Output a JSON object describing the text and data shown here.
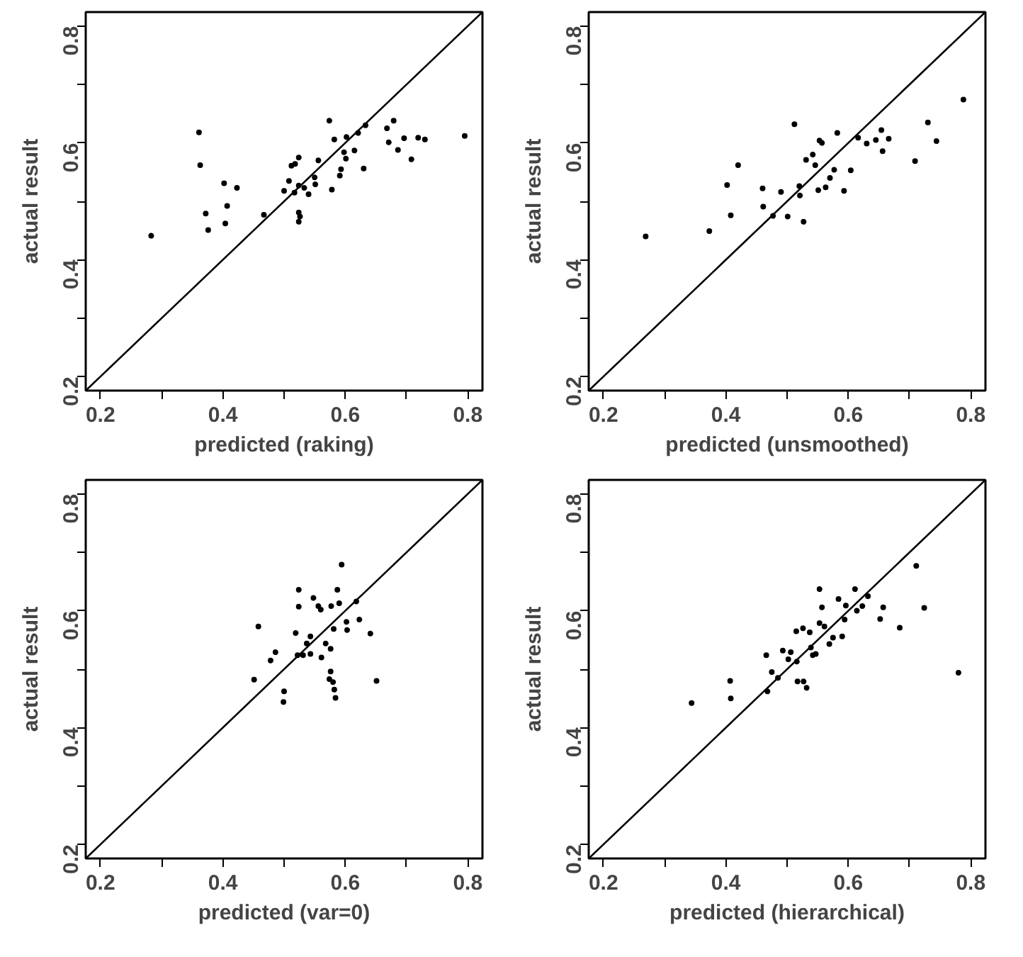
{
  "chart_data": [
    {
      "type": "scatter",
      "xlabel": "predicted (raking)",
      "ylabel": "actual result",
      "xlim": [
        0.176,
        0.824
      ],
      "ylim": [
        0.176,
        0.824
      ],
      "xticks": [
        0.2,
        {
          "value": 0.3,
          "label": null
        },
        0.4,
        {
          "value": 0.5,
          "label": null
        },
        0.6,
        {
          "value": 0.7,
          "label": null
        },
        0.8
      ],
      "yticks": [
        0.2,
        {
          "value": 0.3,
          "label": null
        },
        0.4,
        {
          "value": 0.5,
          "label": null
        },
        0.6,
        {
          "value": 0.7,
          "label": null
        },
        0.8
      ],
      "grid": false,
      "series": [
        {
          "marker": "circle",
          "color": "#000000",
          "x": [
            0.283,
            0.361,
            0.363,
            0.372,
            0.376,
            0.402,
            0.423,
            0.407,
            0.404,
            0.467,
            0.5,
            0.508,
            0.512,
            0.518,
            0.524,
            0.517,
            0.524,
            0.533,
            0.54,
            0.55,
            0.551,
            0.524,
            0.526,
            0.524,
            0.556,
            0.574,
            0.582,
            0.578,
            0.591,
            0.593,
            0.598,
            0.601,
            0.602,
            0.615,
            0.621,
            0.63,
            0.633,
            0.668,
            0.679,
            0.671,
            0.686,
            0.696,
            0.708,
            0.719,
            0.73,
            0.795
          ],
          "values": [
            0.441,
            0.618,
            0.562,
            0.479,
            0.451,
            0.531,
            0.523,
            0.492,
            0.462,
            0.477,
            0.518,
            0.535,
            0.561,
            0.564,
            0.575,
            0.515,
            0.527,
            0.523,
            0.512,
            0.541,
            0.529,
            0.481,
            0.474,
            0.465,
            0.57,
            0.638,
            0.606,
            0.52,
            0.544,
            0.555,
            0.584,
            0.573,
            0.61,
            0.587,
            0.617,
            0.556,
            0.63,
            0.625,
            0.638,
            0.601,
            0.588,
            0.608,
            0.572,
            0.609,
            0.606,
            0.612
          ]
        },
        {
          "type": "line",
          "color": "#000000",
          "x": [
            0.176,
            0.824
          ],
          "values": [
            0.176,
            0.824
          ]
        }
      ]
    },
    {
      "type": "scatter",
      "xlabel": "predicted (unsmoothed)",
      "ylabel": "actual result",
      "xlim": [
        0.176,
        0.824
      ],
      "ylim": [
        0.176,
        0.824
      ],
      "xticks": [
        0.2,
        {
          "value": 0.3,
          "label": null
        },
        0.4,
        {
          "value": 0.5,
          "label": null
        },
        0.6,
        {
          "value": 0.7,
          "label": null
        },
        0.8
      ],
      "yticks": [
        0.2,
        {
          "value": 0.3,
          "label": null
        },
        0.4,
        {
          "value": 0.5,
          "label": null
        },
        0.6,
        {
          "value": 0.7,
          "label": null
        },
        0.8
      ],
      "grid": false,
      "series": [
        {
          "marker": "circle",
          "color": "#000000",
          "x": [
            0.269,
            0.373,
            0.408,
            0.402,
            0.42,
            0.46,
            0.461,
            0.477,
            0.49,
            0.501,
            0.512,
            0.52,
            0.521,
            0.527,
            0.531,
            0.542,
            0.546,
            0.551,
            0.553,
            0.557,
            0.563,
            0.57,
            0.577,
            0.582,
            0.593,
            0.604,
            0.616,
            0.63,
            0.645,
            0.654,
            0.656,
            0.666,
            0.709,
            0.73,
            0.744,
            0.788
          ],
          "values": [
            0.44,
            0.449,
            0.476,
            0.528,
            0.562,
            0.522,
            0.491,
            0.475,
            0.516,
            0.474,
            0.632,
            0.526,
            0.51,
            0.465,
            0.571,
            0.58,
            0.562,
            0.519,
            0.604,
            0.6,
            0.524,
            0.54,
            0.554,
            0.617,
            0.518,
            0.553,
            0.609,
            0.599,
            0.605,
            0.622,
            0.586,
            0.607,
            0.569,
            0.635,
            0.603,
            0.674
          ]
        },
        {
          "type": "line",
          "color": "#000000",
          "x": [
            0.176,
            0.824
          ],
          "values": [
            0.176,
            0.824
          ]
        }
      ]
    },
    {
      "type": "scatter",
      "xlabel": "predicted (var=0)",
      "ylabel": "actual result",
      "xlim": [
        0.176,
        0.824
      ],
      "ylim": [
        0.176,
        0.824
      ],
      "xticks": [
        0.2,
        {
          "value": 0.3,
          "label": null
        },
        0.4,
        {
          "value": 0.5,
          "label": null
        },
        0.6,
        {
          "value": 0.7,
          "label": null
        },
        0.8
      ],
      "yticks": [
        0.2,
        {
          "value": 0.3,
          "label": null
        },
        0.4,
        {
          "value": 0.5,
          "label": null
        },
        0.6,
        {
          "value": 0.7,
          "label": null
        },
        0.8
      ],
      "grid": false,
      "series": [
        {
          "marker": "circle",
          "color": "#000000",
          "x": [
            0.451,
            0.458,
            0.478,
            0.486,
            0.5,
            0.499,
            0.519,
            0.524,
            0.524,
            0.522,
            0.531,
            0.537,
            0.543,
            0.543,
            0.548,
            0.556,
            0.56,
            0.561,
            0.568,
            0.576,
            0.577,
            0.576,
            0.574,
            0.58,
            0.582,
            0.584,
            0.581,
            0.587,
            0.59,
            0.594,
            0.602,
            0.603,
            0.618,
            0.623,
            0.641,
            0.651
          ],
          "values": [
            0.482,
            0.573,
            0.515,
            0.529,
            0.462,
            0.444,
            0.562,
            0.636,
            0.607,
            0.524,
            0.524,
            0.544,
            0.556,
            0.526,
            0.622,
            0.608,
            0.602,
            0.52,
            0.544,
            0.535,
            0.608,
            0.496,
            0.483,
            0.478,
            0.465,
            0.451,
            0.569,
            0.636,
            0.613,
            0.679,
            0.581,
            0.567,
            0.616,
            0.585,
            0.561,
            0.48
          ]
        },
        {
          "type": "line",
          "color": "#000000",
          "x": [
            0.176,
            0.824
          ],
          "values": [
            0.176,
            0.824
          ]
        }
      ]
    },
    {
      "type": "scatter",
      "xlabel": "predicted (hierarchical)",
      "ylabel": "actual result",
      "xlim": [
        0.176,
        0.824
      ],
      "ylim": [
        0.176,
        0.824
      ],
      "xticks": [
        0.2,
        {
          "value": 0.3,
          "label": null
        },
        0.4,
        {
          "value": 0.5,
          "label": null
        },
        0.6,
        {
          "value": 0.7,
          "label": null
        },
        0.8
      ],
      "yticks": [
        0.2,
        {
          "value": 0.3,
          "label": null
        },
        0.4,
        {
          "value": 0.5,
          "label": null
        },
        0.6,
        {
          "value": 0.7,
          "label": null
        },
        0.8
      ],
      "grid": false,
      "series": [
        {
          "marker": "circle",
          "color": "#000000",
          "x": [
            0.344,
            0.407,
            0.408,
            0.466,
            0.468,
            0.475,
            0.485,
            0.493,
            0.502,
            0.506,
            0.515,
            0.516,
            0.517,
            0.526,
            0.527,
            0.532,
            0.537,
            0.539,
            0.542,
            0.547,
            0.553,
            0.557,
            0.553,
            0.561,
            0.569,
            0.575,
            0.584,
            0.59,
            0.594,
            0.596,
            0.611,
            0.614,
            0.623,
            0.632,
            0.652,
            0.657,
            0.684,
            0.711,
            0.724,
            0.78
          ],
          "values": [
            0.442,
            0.48,
            0.45,
            0.524,
            0.462,
            0.495,
            0.485,
            0.532,
            0.517,
            0.529,
            0.565,
            0.513,
            0.479,
            0.57,
            0.479,
            0.468,
            0.563,
            0.537,
            0.524,
            0.526,
            0.637,
            0.606,
            0.579,
            0.573,
            0.543,
            0.554,
            0.62,
            0.556,
            0.585,
            0.609,
            0.637,
            0.6,
            0.608,
            0.625,
            0.586,
            0.606,
            0.571,
            0.677,
            0.605,
            0.494
          ]
        },
        {
          "type": "line",
          "color": "#000000",
          "x": [
            0.176,
            0.824
          ],
          "values": [
            0.176,
            0.824
          ]
        }
      ]
    }
  ]
}
